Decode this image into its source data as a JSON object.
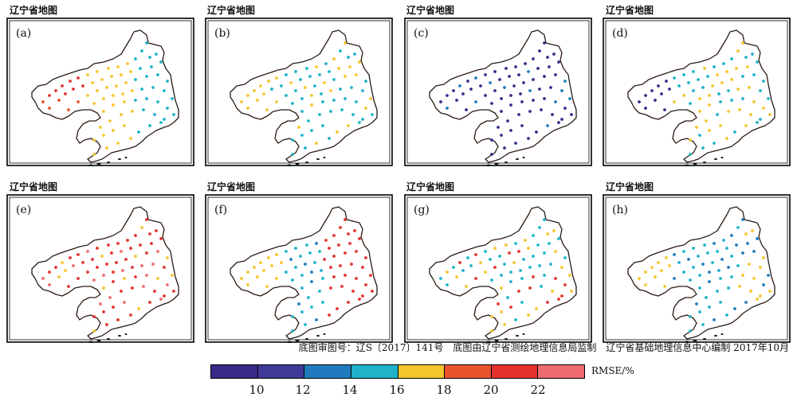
{
  "panels": [
    {
      "title": "辽宁省地图",
      "label": "(a)"
    },
    {
      "title": "辽宁省地图",
      "label": "(b)"
    },
    {
      "title": "辽宁省地图",
      "label": "(c)"
    },
    {
      "title": "辽宁省地图",
      "label": "(d)"
    },
    {
      "title": "辽宁省地图",
      "label": "(e)"
    },
    {
      "title": "辽宁省地图",
      "label": "(f)"
    },
    {
      "title": "辽宁省地图",
      "label": "(g)"
    },
    {
      "title": "辽宁省地图",
      "label": "(h)"
    }
  ],
  "footer_note": "底图审图号：辽S〔2017〕141号　底图由辽宁省测绘地理信息局监制　辽宁省基础地理信息中心编制 2017年10月",
  "colorbar": {
    "unit": "RMSE/%",
    "ticks": [
      "10",
      "12",
      "14",
      "16",
      "18",
      "20",
      "22"
    ],
    "colors": [
      "#3b2a8a",
      "#3f3a98",
      "#1f7bbd",
      "#1fb2c9",
      "#f5c52e",
      "#e8542e",
      "#e3312d",
      "#ef6b6f"
    ]
  },
  "dominant_class_by_panel": {
    "a": "mixed (20–22 west, 16–18 center, 14–16 east)",
    "b": "14–16 dominant with 16–18",
    "c": "<12 dominant",
    "d": "12–14 and 16–18",
    "e": ">20 dominant",
    "f": "16–18 west, 12–16 center, >20 east",
    "g": "14–16 and 16–18, scattered >20",
    "h": "16–18 and 14–16"
  }
}
